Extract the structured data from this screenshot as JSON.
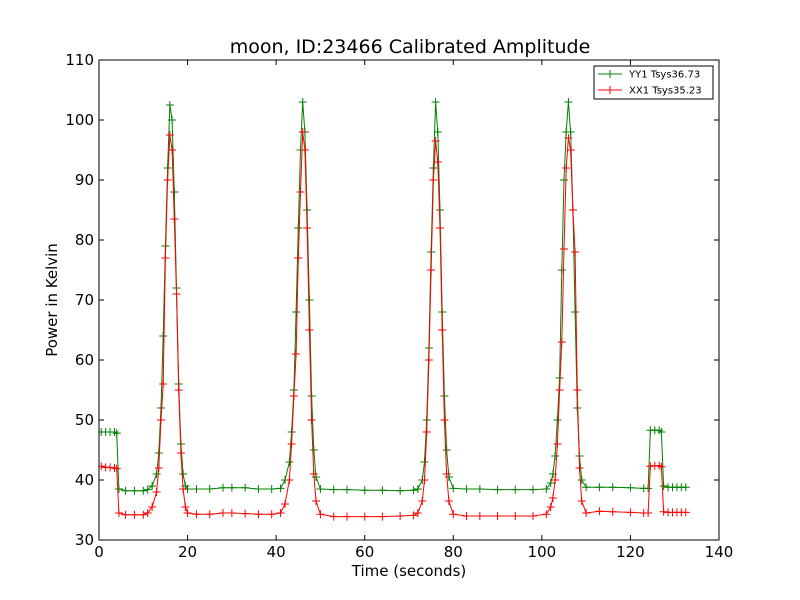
{
  "chart_data": {
    "type": "line",
    "title": "moon, ID:23466 Calibrated Amplitude",
    "xlabel": "Time (seconds)",
    "ylabel": "Power in Kelvin",
    "xlim": [
      0,
      140
    ],
    "ylim": [
      30,
      110
    ],
    "xticks": [
      "0",
      "20",
      "40",
      "60",
      "80",
      "100",
      "120",
      "140"
    ],
    "yticks": [
      "30",
      "40",
      "50",
      "60",
      "70",
      "80",
      "90",
      "100",
      "110"
    ],
    "grid": false,
    "legend_position": "top-right",
    "marker": "+",
    "series": [
      {
        "name": "YY1 Tsys36.73",
        "color": "#008000",
        "points": [
          [
            0.5,
            48.0
          ],
          [
            1.5,
            48.0
          ],
          [
            2.5,
            48.0
          ],
          [
            3.5,
            48.0
          ],
          [
            4.0,
            47.8
          ],
          [
            4.5,
            38.5
          ],
          [
            6,
            38.2
          ],
          [
            8,
            38.2
          ],
          [
            10,
            38.2
          ],
          [
            11,
            38.4
          ],
          [
            12,
            39.0
          ],
          [
            13,
            41.0
          ],
          [
            13.5,
            44.5
          ],
          [
            14,
            52.0
          ],
          [
            14.5,
            64.0
          ],
          [
            15,
            79.0
          ],
          [
            15.5,
            92.0
          ],
          [
            16,
            102.5
          ],
          [
            16.5,
            100.0
          ],
          [
            17,
            88.0
          ],
          [
            17.5,
            72.0
          ],
          [
            18,
            56.0
          ],
          [
            18.5,
            46.0
          ],
          [
            19,
            41.0
          ],
          [
            19.5,
            39.0
          ],
          [
            20,
            38.5
          ],
          [
            22,
            38.5
          ],
          [
            25,
            38.5
          ],
          [
            28,
            38.7
          ],
          [
            30,
            38.7
          ],
          [
            33,
            38.7
          ],
          [
            36,
            38.5
          ],
          [
            39,
            38.5
          ],
          [
            41,
            38.6
          ],
          [
            42,
            40.0
          ],
          [
            43,
            43.0
          ],
          [
            43.5,
            48.0
          ],
          [
            44,
            55.0
          ],
          [
            44.5,
            68.0
          ],
          [
            45,
            82.0
          ],
          [
            45.5,
            95.0
          ],
          [
            46,
            103.0
          ],
          [
            46.5,
            98.0
          ],
          [
            47,
            85.0
          ],
          [
            47.5,
            70.0
          ],
          [
            48,
            54.0
          ],
          [
            48.5,
            45.0
          ],
          [
            49,
            40.5
          ],
          [
            50,
            38.5
          ],
          [
            53,
            38.4
          ],
          [
            56,
            38.4
          ],
          [
            60,
            38.3
          ],
          [
            64,
            38.3
          ],
          [
            68,
            38.2
          ],
          [
            71,
            38.3
          ],
          [
            72,
            38.5
          ],
          [
            73,
            40.0
          ],
          [
            73.5,
            43.0
          ],
          [
            74,
            50.0
          ],
          [
            74.5,
            62.0
          ],
          [
            75,
            78.0
          ],
          [
            75.5,
            92.0
          ],
          [
            76,
            103.0
          ],
          [
            76.5,
            98.0
          ],
          [
            77,
            85.0
          ],
          [
            77.5,
            68.0
          ],
          [
            78,
            54.0
          ],
          [
            78.5,
            45.0
          ],
          [
            79,
            40.5
          ],
          [
            80,
            38.6
          ],
          [
            83,
            38.5
          ],
          [
            86,
            38.5
          ],
          [
            90,
            38.4
          ],
          [
            94,
            38.4
          ],
          [
            98,
            38.4
          ],
          [
            101,
            38.5
          ],
          [
            102,
            39.5
          ],
          [
            102.5,
            41.0
          ],
          [
            103,
            44.0
          ],
          [
            103.5,
            50.0
          ],
          [
            104,
            57.0
          ],
          [
            104.5,
            75.0
          ],
          [
            105,
            90.0
          ],
          [
            105.5,
            98.0
          ],
          [
            106,
            103.0
          ],
          [
            106.5,
            98.0
          ],
          [
            107,
            85.0
          ],
          [
            107.5,
            68.0
          ],
          [
            108,
            52.0
          ],
          [
            108.5,
            44.0
          ],
          [
            109,
            40.0
          ],
          [
            110,
            38.8
          ],
          [
            113,
            38.8
          ],
          [
            116,
            38.8
          ],
          [
            120,
            38.7
          ],
          [
            123,
            38.6
          ],
          [
            124,
            38.6
          ],
          [
            124.5,
            48.3
          ],
          [
            125.5,
            48.3
          ],
          [
            126.5,
            48.3
          ],
          [
            127,
            48.0
          ],
          [
            127.5,
            39.0
          ],
          [
            128.5,
            38.8
          ],
          [
            129.5,
            38.8
          ],
          [
            130.5,
            38.8
          ],
          [
            131.5,
            38.8
          ],
          [
            132.5,
            38.8
          ]
        ]
      },
      {
        "name": "XX1 Tsys35.23",
        "color": "#ff0000",
        "points": [
          [
            0.5,
            42.3
          ],
          [
            1.5,
            42.1
          ],
          [
            2.5,
            42.1
          ],
          [
            3.5,
            42.0
          ],
          [
            4.0,
            41.9
          ],
          [
            4.5,
            34.5
          ],
          [
            6,
            34.2
          ],
          [
            8,
            34.2
          ],
          [
            10,
            34.2
          ],
          [
            11,
            34.5
          ],
          [
            12,
            35.5
          ],
          [
            13,
            38.0
          ],
          [
            13.5,
            42.0
          ],
          [
            14,
            50.0
          ],
          [
            14.5,
            56.0
          ],
          [
            15,
            77.0
          ],
          [
            15.5,
            90.0
          ],
          [
            16,
            97.5
          ],
          [
            16.5,
            95.0
          ],
          [
            17,
            83.5
          ],
          [
            17.5,
            71.0
          ],
          [
            18,
            55.0
          ],
          [
            18.5,
            44.5
          ],
          [
            19,
            38.5
          ],
          [
            19.5,
            35.5
          ],
          [
            20,
            34.5
          ],
          [
            22,
            34.3
          ],
          [
            25,
            34.3
          ],
          [
            28,
            34.5
          ],
          [
            30,
            34.5
          ],
          [
            33,
            34.4
          ],
          [
            36,
            34.3
          ],
          [
            39,
            34.3
          ],
          [
            41,
            34.5
          ],
          [
            42,
            36.0
          ],
          [
            43,
            40.0
          ],
          [
            43.5,
            46.0
          ],
          [
            44,
            54.0
          ],
          [
            44.5,
            61.0
          ],
          [
            45,
            77.0
          ],
          [
            45.5,
            88.0
          ],
          [
            46,
            98.0
          ],
          [
            46.5,
            95.0
          ],
          [
            47,
            82.0
          ],
          [
            47.5,
            65.0
          ],
          [
            48,
            50.0
          ],
          [
            48.5,
            41.0
          ],
          [
            49,
            36.5
          ],
          [
            50,
            34.3
          ],
          [
            53,
            33.9
          ],
          [
            56,
            33.9
          ],
          [
            60,
            33.9
          ],
          [
            64,
            33.9
          ],
          [
            68,
            34.0
          ],
          [
            71,
            34.1
          ],
          [
            72,
            34.5
          ],
          [
            73,
            36.5
          ],
          [
            73.5,
            40.0
          ],
          [
            74,
            48.0
          ],
          [
            74.5,
            60.0
          ],
          [
            75,
            75.0
          ],
          [
            75.5,
            90.0
          ],
          [
            76,
            96.5
          ],
          [
            76.5,
            93.0
          ],
          [
            77,
            82.0
          ],
          [
            77.5,
            65.0
          ],
          [
            78,
            50.0
          ],
          [
            78.5,
            41.0
          ],
          [
            79,
            36.5
          ],
          [
            80,
            34.3
          ],
          [
            83,
            34.0
          ],
          [
            86,
            34.0
          ],
          [
            90,
            34.0
          ],
          [
            94,
            34.0
          ],
          [
            98,
            34.0
          ],
          [
            101,
            34.3
          ],
          [
            102,
            35.5
          ],
          [
            102.5,
            37.0
          ],
          [
            103,
            40.0
          ],
          [
            103.5,
            46.0
          ],
          [
            104,
            55.0
          ],
          [
            104.5,
            63.0
          ],
          [
            105,
            78.5
          ],
          [
            105.5,
            92.0
          ],
          [
            106,
            97.0
          ],
          [
            106.5,
            95.0
          ],
          [
            107,
            85.0
          ],
          [
            107.5,
            78.0
          ],
          [
            108,
            55.0
          ],
          [
            108.5,
            42.0
          ],
          [
            109,
            36.5
          ],
          [
            110,
            34.5
          ],
          [
            113,
            34.8
          ],
          [
            116,
            34.7
          ],
          [
            120,
            34.6
          ],
          [
            123,
            34.5
          ],
          [
            124,
            34.5
          ],
          [
            124.5,
            42.3
          ],
          [
            125.5,
            42.4
          ],
          [
            126.5,
            42.4
          ],
          [
            127,
            42.2
          ],
          [
            127.5,
            34.7
          ],
          [
            128.5,
            34.6
          ],
          [
            129.5,
            34.6
          ],
          [
            130.5,
            34.6
          ],
          [
            131.5,
            34.6
          ],
          [
            132.5,
            34.6
          ]
        ]
      }
    ]
  }
}
